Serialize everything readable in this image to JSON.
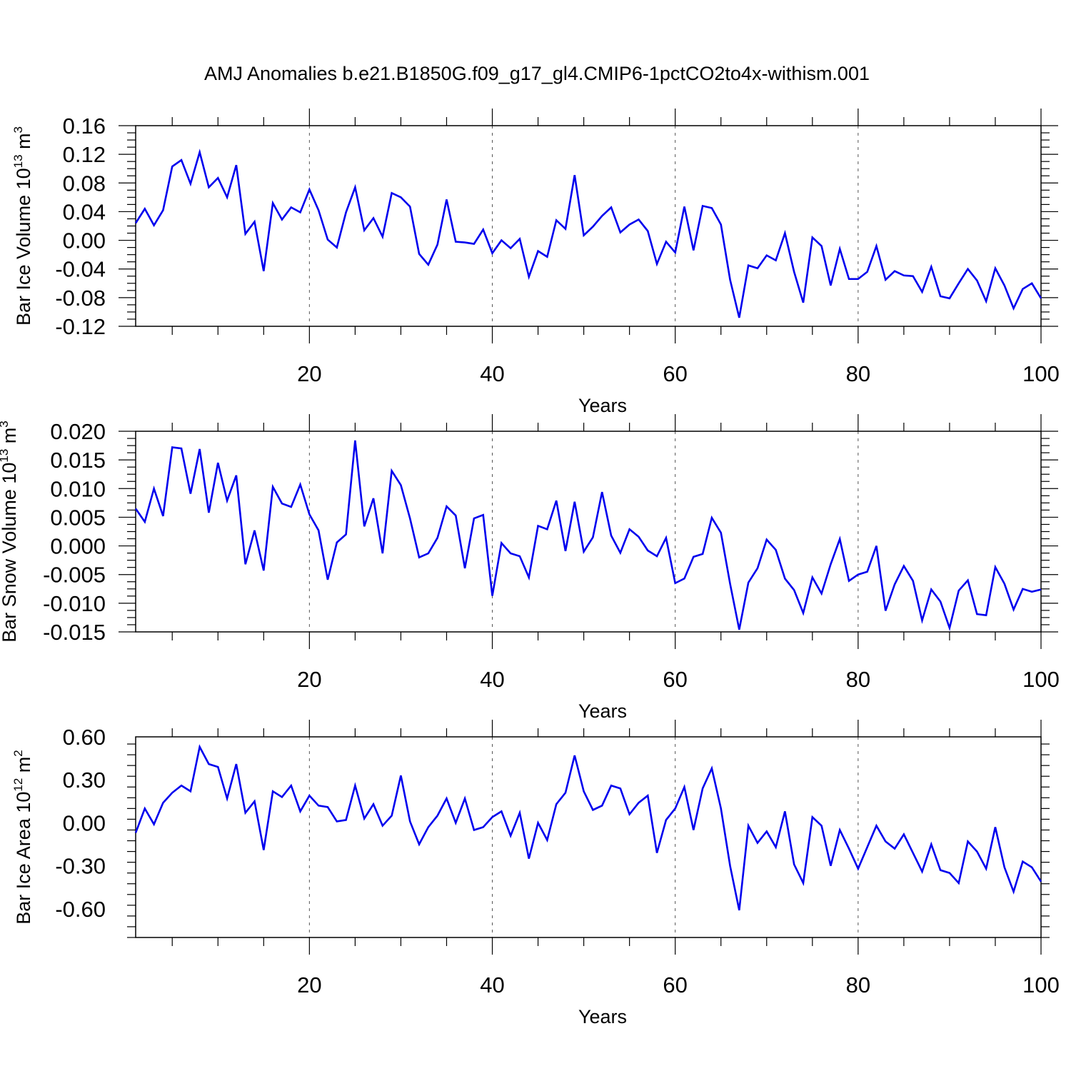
{
  "title": "AMJ Anomalies b.e21.B1850G.f09_g17_gl4.CMIP6-1pctCO2to4x-withism.001",
  "line_color": "#0000ee",
  "chart_data": [
    {
      "type": "line",
      "ylabel": "Bar Ice Volume 10",
      "ylabel_exp": "13",
      "ylabel_unit": " m",
      "ylabel_unit_exp": "3",
      "xlabel": "Years",
      "xlim": [
        1,
        100
      ],
      "ylim": [
        -0.12,
        0.16
      ],
      "xticks": [
        20,
        40,
        60,
        80,
        100
      ],
      "xtick_labels": [
        "20",
        "40",
        "60",
        "80",
        "100"
      ],
      "yticks": [
        -0.12,
        -0.08,
        -0.04,
        0.0,
        0.04,
        0.08,
        0.12,
        0.16
      ],
      "ytick_labels": [
        "-0.12",
        "-0.08",
        "-0.04",
        "0.00",
        "0.04",
        "0.08",
        "0.12",
        "0.16"
      ],
      "grid": "vertical dashed at major x ticks",
      "series": [
        {
          "name": "Bar Ice Volume",
          "values": [
            0.024,
            0.044,
            0.021,
            0.042,
            0.103,
            0.112,
            0.079,
            0.123,
            0.074,
            0.087,
            0.06,
            0.105,
            0.009,
            0.026,
            -0.043,
            0.052,
            0.029,
            0.046,
            0.039,
            0.071,
            0.042,
            0.001,
            -0.01,
            0.039,
            0.074,
            0.014,
            0.031,
            0.005,
            0.066,
            0.06,
            0.047,
            -0.019,
            -0.034,
            -0.006,
            0.057,
            -0.002,
            -0.003,
            -0.005,
            0.015,
            -0.018,
            0.0,
            -0.011,
            0.002,
            -0.051,
            -0.015,
            -0.023,
            0.028,
            0.016,
            0.091,
            0.007,
            0.019,
            0.034,
            0.046,
            0.011,
            0.022,
            0.029,
            0.013,
            -0.033,
            -0.002,
            -0.017,
            0.047,
            -0.014,
            0.048,
            0.045,
            0.022,
            -0.055,
            -0.108,
            -0.035,
            -0.039,
            -0.021,
            -0.028,
            0.01,
            -0.044,
            -0.087,
            0.004,
            -0.008,
            -0.063,
            -0.012,
            -0.054,
            -0.054,
            -0.044,
            -0.008,
            -0.055,
            -0.043,
            -0.049,
            -0.05,
            -0.072,
            -0.037,
            -0.078,
            -0.081,
            -0.06,
            -0.04,
            -0.056,
            -0.085,
            -0.039,
            -0.063,
            -0.095,
            -0.068,
            -0.06,
            -0.081
          ]
        }
      ]
    },
    {
      "type": "line",
      "ylabel": "Bar Snow Volume 10",
      "ylabel_exp": "13",
      "ylabel_unit": " m",
      "ylabel_unit_exp": "3",
      "xlabel": "Years",
      "xlim": [
        1,
        100
      ],
      "ylim": [
        -0.015,
        0.02
      ],
      "xticks": [
        20,
        40,
        60,
        80,
        100
      ],
      "xtick_labels": [
        "20",
        "40",
        "60",
        "80",
        "100"
      ],
      "yticks": [
        -0.015,
        -0.01,
        -0.005,
        0.0,
        0.005,
        0.01,
        0.015,
        0.02
      ],
      "ytick_labels": [
        "-0.015",
        "-0.010",
        "-0.005",
        "0.000",
        "0.005",
        "0.010",
        "0.015",
        "0.020"
      ],
      "grid": "vertical dashed at major x ticks",
      "series": [
        {
          "name": "Bar Snow Volume",
          "values": [
            0.0065,
            0.0042,
            0.01,
            0.0052,
            0.0172,
            0.017,
            0.0091,
            0.0169,
            0.0058,
            0.0145,
            0.0079,
            0.0123,
            -0.0032,
            0.0027,
            -0.0043,
            0.0103,
            0.0074,
            0.0068,
            0.0107,
            0.0055,
            0.0027,
            -0.0059,
            0.0006,
            0.002,
            0.0184,
            0.0034,
            0.0083,
            -0.0013,
            0.0131,
            0.0106,
            0.0048,
            -0.002,
            -0.0013,
            0.0014,
            0.0069,
            0.0053,
            -0.0039,
            0.0048,
            0.0054,
            -0.0087,
            0.0005,
            -0.0013,
            -0.0018,
            -0.0055,
            0.0035,
            0.0029,
            0.0079,
            -0.0009,
            0.0077,
            -0.001,
            0.0015,
            0.0094,
            0.0018,
            -0.0012,
            0.0029,
            0.0016,
            -0.0008,
            -0.0018,
            0.0014,
            -0.0065,
            -0.0057,
            -0.0019,
            -0.0014,
            0.0049,
            0.0023,
            -0.0066,
            -0.0146,
            -0.0064,
            -0.0039,
            0.0011,
            -0.0007,
            -0.0057,
            -0.0077,
            -0.0117,
            -0.0055,
            -0.0083,
            -0.0032,
            0.0012,
            -0.0061,
            -0.005,
            -0.0045,
            0.0,
            -0.0113,
            -0.0067,
            -0.0035,
            -0.0061,
            -0.013,
            -0.0076,
            -0.0097,
            -0.0143,
            -0.0078,
            -0.006,
            -0.0119,
            -0.0121,
            -0.0037,
            -0.0066,
            -0.0111,
            -0.0075,
            -0.008,
            -0.0076
          ]
        }
      ]
    },
    {
      "type": "line",
      "ylabel": "Bar Ice Area 10",
      "ylabel_exp": "12",
      "ylabel_unit": " m",
      "ylabel_unit_exp": "2",
      "xlabel": "Years",
      "xlim": [
        1,
        100
      ],
      "ylim": [
        -0.8,
        0.6
      ],
      "xticks": [
        20,
        40,
        60,
        80,
        100
      ],
      "xtick_labels": [
        "20",
        "40",
        "60",
        "80",
        "100"
      ],
      "yticks": [
        -0.6,
        -0.3,
        0.0,
        0.3,
        0.6
      ],
      "ytick_labels": [
        "-0.60",
        "-0.30",
        "0.00",
        "0.30",
        "0.60"
      ],
      "grid": "vertical dashed at major x ticks",
      "series": [
        {
          "name": "Bar Ice Area",
          "values": [
            -0.07,
            0.1,
            -0.01,
            0.14,
            0.21,
            0.26,
            0.22,
            0.53,
            0.41,
            0.39,
            0.17,
            0.41,
            0.07,
            0.15,
            -0.19,
            0.22,
            0.18,
            0.26,
            0.08,
            0.19,
            0.12,
            0.11,
            0.01,
            0.02,
            0.26,
            0.03,
            0.13,
            -0.02,
            0.05,
            0.33,
            0.01,
            -0.15,
            -0.03,
            0.05,
            0.17,
            0.0,
            0.17,
            -0.05,
            -0.03,
            0.04,
            0.08,
            -0.09,
            0.07,
            -0.25,
            0.0,
            -0.12,
            0.13,
            0.21,
            0.47,
            0.22,
            0.09,
            0.12,
            0.26,
            0.24,
            0.06,
            0.14,
            0.19,
            -0.21,
            0.02,
            0.1,
            0.25,
            -0.05,
            0.24,
            0.38,
            0.1,
            -0.3,
            -0.61,
            -0.02,
            -0.14,
            -0.06,
            -0.17,
            0.08,
            -0.29,
            -0.42,
            0.04,
            -0.02,
            -0.3,
            -0.05,
            -0.18,
            -0.32,
            -0.17,
            -0.02,
            -0.13,
            -0.18,
            -0.08,
            -0.21,
            -0.34,
            -0.15,
            -0.33,
            -0.35,
            -0.42,
            -0.13,
            -0.2,
            -0.32,
            -0.03,
            -0.31,
            -0.48,
            -0.27,
            -0.31,
            -0.41
          ]
        }
      ]
    }
  ]
}
